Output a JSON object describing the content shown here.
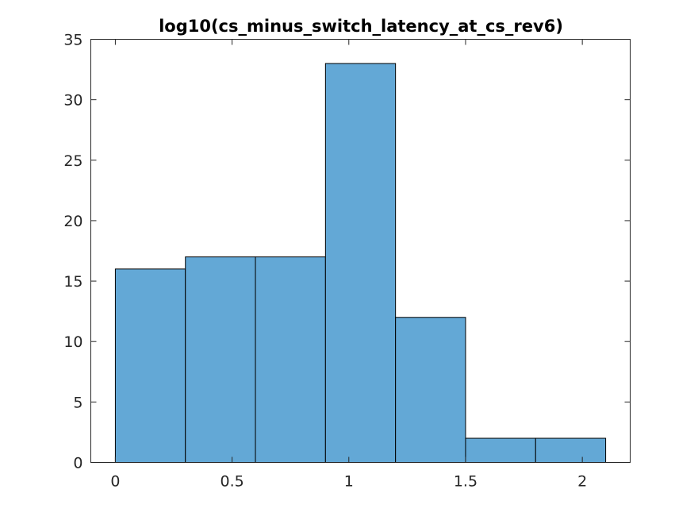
{
  "chart_data": {
    "type": "bar",
    "title": "log10(cs_minus_switch_latency_at_cs_rev6)",
    "xlabel": "",
    "ylabel": "",
    "bins": [
      {
        "x0": 0.0,
        "x1": 0.3,
        "count": 16
      },
      {
        "x0": 0.3,
        "x1": 0.6,
        "count": 17
      },
      {
        "x0": 0.6,
        "x1": 0.9,
        "count": 17
      },
      {
        "x0": 0.9,
        "x1": 1.2,
        "count": 33
      },
      {
        "x0": 1.2,
        "x1": 1.5,
        "count": 12
      },
      {
        "x0": 1.5,
        "x1": 1.8,
        "count": 2
      },
      {
        "x0": 1.8,
        "x1": 2.1,
        "count": 2
      }
    ],
    "xlim": [
      -0.105,
      2.205
    ],
    "ylim": [
      0,
      35
    ],
    "xticks": [
      0,
      0.5,
      1,
      1.5,
      2
    ],
    "xtick_labels": [
      "0",
      "0.5",
      "1",
      "1.5",
      "2"
    ],
    "yticks": [
      0,
      5,
      10,
      15,
      20,
      25,
      30,
      35
    ],
    "ytick_labels": [
      "0",
      "5",
      "10",
      "15",
      "20",
      "25",
      "30",
      "35"
    ],
    "grid": false,
    "legend": "none",
    "bar_color": "#63A8D6",
    "edge_color": "#000000"
  }
}
